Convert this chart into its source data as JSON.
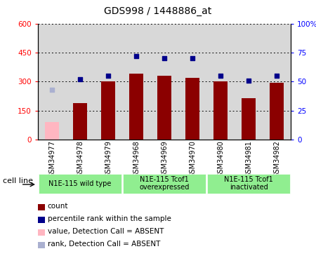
{
  "title": "GDS998 / 1448886_at",
  "samples": [
    "GSM34977",
    "GSM34978",
    "GSM34979",
    "GSM34968",
    "GSM34969",
    "GSM34970",
    "GSM34980",
    "GSM34981",
    "GSM34982"
  ],
  "counts": [
    90,
    190,
    300,
    340,
    330,
    320,
    300,
    215,
    295
  ],
  "ranks_pct": [
    null,
    52,
    55,
    72,
    70,
    70,
    55,
    51,
    55
  ],
  "absent_count_val": 90,
  "absent_rank_val": 43,
  "absent_indices": [
    0
  ],
  "groups": [
    {
      "label": "N1E-115 wild type",
      "indices": [
        0,
        1,
        2
      ]
    },
    {
      "label": "N1E-115 Tcof1\noverexpressed",
      "indices": [
        3,
        4,
        5
      ]
    },
    {
      "label": "N1E-115 Tcof1\ninactivated",
      "indices": [
        6,
        7,
        8
      ]
    }
  ],
  "ylim_left": [
    0,
    600
  ],
  "ylim_right": [
    0,
    100
  ],
  "yticks_left": [
    0,
    150,
    300,
    450,
    600
  ],
  "yticks_right": [
    0,
    25,
    50,
    75,
    100
  ],
  "ytick_labels_left": [
    "0",
    "150",
    "300",
    "450",
    "600"
  ],
  "ytick_labels_right": [
    "0",
    "25",
    "50",
    "75",
    "100%"
  ],
  "bar_color_normal": "#8b0000",
  "bar_color_absent": "#ffb6c1",
  "rank_color_normal": "#00008b",
  "rank_color_absent": "#aab0d0",
  "bar_width": 0.5,
  "cell_line_label": "cell line",
  "legend_items": [
    {
      "label": "count",
      "color": "#8b0000"
    },
    {
      "label": "percentile rank within the sample",
      "color": "#00008b"
    },
    {
      "label": "value, Detection Call = ABSENT",
      "color": "#ffb6c1"
    },
    {
      "label": "rank, Detection Call = ABSENT",
      "color": "#aab0d0"
    }
  ],
  "group_color": "#90ee90",
  "group_color_alt": "#ccffcc",
  "plot_bg": "#d8d8d8",
  "col_bg": "#d8d8d8"
}
